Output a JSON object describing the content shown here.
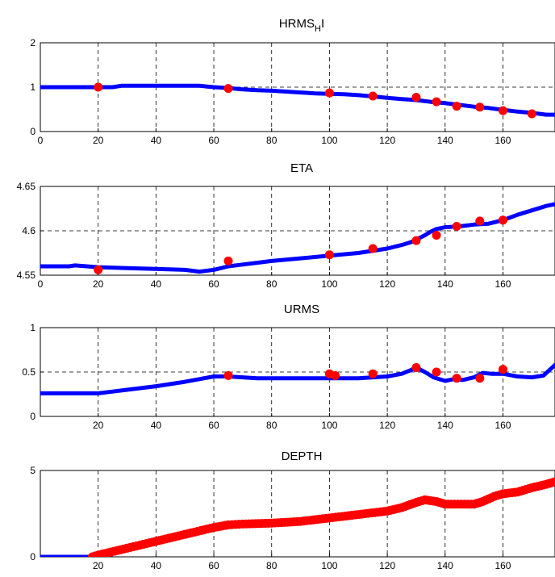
{
  "chart_data": [
    {
      "type": "line",
      "title": "HRMS",
      "title_sub": "H",
      "title_suffix": "I",
      "xlabel": "",
      "ylabel": "",
      "xlim": [
        0,
        178
      ],
      "ylim": [
        0,
        2
      ],
      "xticks": [
        0,
        20,
        40,
        60,
        80,
        100,
        120,
        140,
        160
      ],
      "yticks": [
        0,
        1,
        2
      ],
      "grid": true,
      "series": [
        {
          "kind": "line",
          "color": "#0000ff",
          "x": [
            0,
            20,
            25,
            28,
            35,
            45,
            55,
            60,
            65,
            70,
            75,
            80,
            85,
            90,
            95,
            100,
            105,
            110,
            115,
            120,
            125,
            130,
            135,
            140,
            145,
            150,
            155,
            160,
            165,
            170,
            175,
            178
          ],
          "y": [
            1.0,
            1.0,
            1.0,
            1.03,
            1.03,
            1.03,
            1.03,
            1.0,
            0.98,
            0.95,
            0.93,
            0.92,
            0.9,
            0.88,
            0.86,
            0.85,
            0.84,
            0.82,
            0.79,
            0.76,
            0.73,
            0.71,
            0.67,
            0.64,
            0.6,
            0.56,
            0.53,
            0.49,
            0.45,
            0.42,
            0.38,
            0.38
          ]
        },
        {
          "kind": "scatter",
          "color": "#ff0000",
          "x": [
            20,
            65,
            100,
            115,
            130,
            137,
            144,
            152,
            160,
            170
          ],
          "y": [
            1.0,
            0.97,
            0.87,
            0.8,
            0.77,
            0.67,
            0.57,
            0.55,
            0.47,
            0.4
          ]
        }
      ]
    },
    {
      "type": "line",
      "title": "ETA",
      "xlabel": "",
      "ylabel": "",
      "xlim": [
        0,
        178
      ],
      "ylim": [
        4.55,
        4.65
      ],
      "xticks": [
        0,
        20,
        40,
        60,
        80,
        100,
        120,
        140,
        160
      ],
      "yticks": [
        4.55,
        4.6,
        4.65
      ],
      "grid": true,
      "series": [
        {
          "kind": "line",
          "color": "#0000ff",
          "x": [
            0,
            10,
            12,
            20,
            30,
            40,
            50,
            55,
            60,
            65,
            70,
            75,
            80,
            90,
            100,
            110,
            120,
            125,
            128,
            130,
            133,
            135,
            137,
            140,
            145,
            150,
            155,
            160,
            165,
            170,
            175,
            178
          ],
          "y": [
            4.56,
            4.56,
            4.561,
            4.559,
            4.558,
            4.557,
            4.556,
            4.554,
            4.556,
            4.56,
            4.562,
            4.564,
            4.566,
            4.569,
            4.572,
            4.575,
            4.58,
            4.584,
            4.587,
            4.59,
            4.595,
            4.599,
            4.602,
            4.604,
            4.605,
            4.607,
            4.608,
            4.612,
            4.618,
            4.623,
            4.628,
            4.63
          ]
        },
        {
          "kind": "scatter",
          "color": "#ff0000",
          "x": [
            20,
            65,
            100,
            115,
            130,
            137,
            144,
            152,
            160
          ],
          "y": [
            4.556,
            4.566,
            4.573,
            4.58,
            4.589,
            4.595,
            4.605,
            4.611,
            4.612
          ]
        }
      ]
    },
    {
      "type": "line",
      "title": "URMS",
      "xlabel": "",
      "ylabel": "",
      "xlim": [
        0,
        178
      ],
      "ylim": [
        0,
        1
      ],
      "xticks": [
        20,
        40,
        60,
        80,
        100,
        120,
        140,
        160
      ],
      "yticks": [
        0,
        0.5,
        1
      ],
      "grid": true,
      "series": [
        {
          "kind": "line",
          "color": "#0000ff",
          "x": [
            0,
            20,
            25,
            30,
            40,
            50,
            55,
            60,
            65,
            70,
            75,
            80,
            90,
            100,
            110,
            120,
            125,
            128,
            130,
            133,
            136,
            140,
            143,
            146,
            150,
            153,
            156,
            160,
            165,
            170,
            174,
            176,
            178
          ],
          "y": [
            0.26,
            0.26,
            0.28,
            0.3,
            0.34,
            0.39,
            0.42,
            0.45,
            0.45,
            0.44,
            0.43,
            0.43,
            0.43,
            0.43,
            0.43,
            0.45,
            0.48,
            0.52,
            0.55,
            0.5,
            0.44,
            0.4,
            0.42,
            0.41,
            0.44,
            0.49,
            0.48,
            0.48,
            0.45,
            0.44,
            0.46,
            0.52,
            0.58
          ]
        },
        {
          "kind": "scatter",
          "color": "#ff0000",
          "x": [
            65,
            100,
            102,
            115,
            130,
            137,
            144,
            152,
            160
          ],
          "y": [
            0.46,
            0.48,
            0.46,
            0.48,
            0.55,
            0.5,
            0.43,
            0.43,
            0.53
          ]
        }
      ]
    },
    {
      "type": "line",
      "title": "DEPTH",
      "xlabel": "",
      "ylabel": "",
      "xlim": [
        0,
        178
      ],
      "ylim": [
        0,
        5
      ],
      "xticks": [
        20,
        40,
        60,
        80,
        100,
        120,
        140,
        160
      ],
      "yticks": [
        0,
        5
      ],
      "grid": true,
      "series": [
        {
          "kind": "line",
          "color": "#0000ff",
          "x": [
            0,
            18,
            20,
            30,
            40,
            50,
            60,
            65,
            70,
            80,
            90,
            100,
            110,
            120,
            125,
            130,
            133,
            137,
            140,
            150,
            153,
            157,
            160,
            165,
            170,
            175,
            178
          ],
          "y": [
            0,
            0,
            0.1,
            0.5,
            0.9,
            1.3,
            1.7,
            1.85,
            1.9,
            1.95,
            2.05,
            2.25,
            2.45,
            2.65,
            2.85,
            3.15,
            3.3,
            3.2,
            3.05,
            3.05,
            3.2,
            3.5,
            3.65,
            3.75,
            3.95,
            4.1,
            4.2
          ]
        },
        {
          "kind": "scatter_dense",
          "color": "#ff0000",
          "x": [
            18,
            20,
            30,
            40,
            50,
            60,
            65,
            70,
            80,
            90,
            100,
            110,
            120,
            125,
            130,
            133,
            137,
            140,
            150,
            153,
            157,
            160,
            165,
            170,
            175,
            178
          ],
          "y": [
            0,
            0.1,
            0.5,
            0.9,
            1.3,
            1.7,
            1.85,
            1.9,
            1.95,
            2.05,
            2.25,
            2.45,
            2.65,
            2.85,
            3.15,
            3.3,
            3.2,
            3.05,
            3.05,
            3.2,
            3.5,
            3.65,
            3.75,
            4.0,
            4.2,
            4.35
          ]
        }
      ]
    }
  ]
}
